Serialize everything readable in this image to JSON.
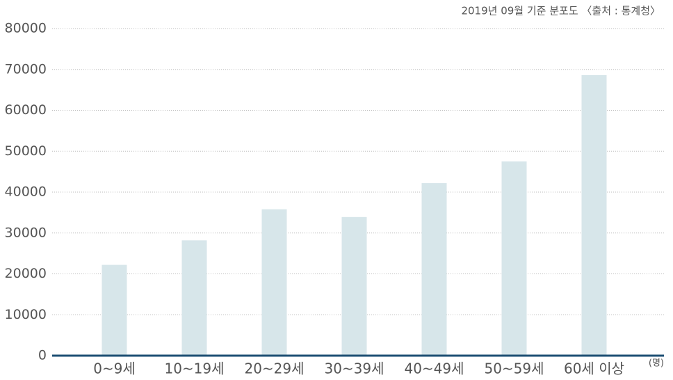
{
  "chart_data": {
    "type": "bar",
    "subtitle": "2019년 09월 기준 분포도 〈출처 : 통계청〉",
    "y_unit": "(명)",
    "categories": [
      "0~9세",
      "10~19세",
      "20~29세",
      "30~39세",
      "40~49세",
      "50~59세",
      "60세 이상"
    ],
    "values": [
      22200,
      28200,
      35800,
      33900,
      42200,
      47500,
      68600
    ],
    "color": "#d7e6ea",
    "ylim": [
      0,
      80000
    ],
    "yticks": [
      0,
      10000,
      20000,
      30000,
      40000,
      50000,
      60000,
      70000,
      80000
    ],
    "grid": true
  }
}
